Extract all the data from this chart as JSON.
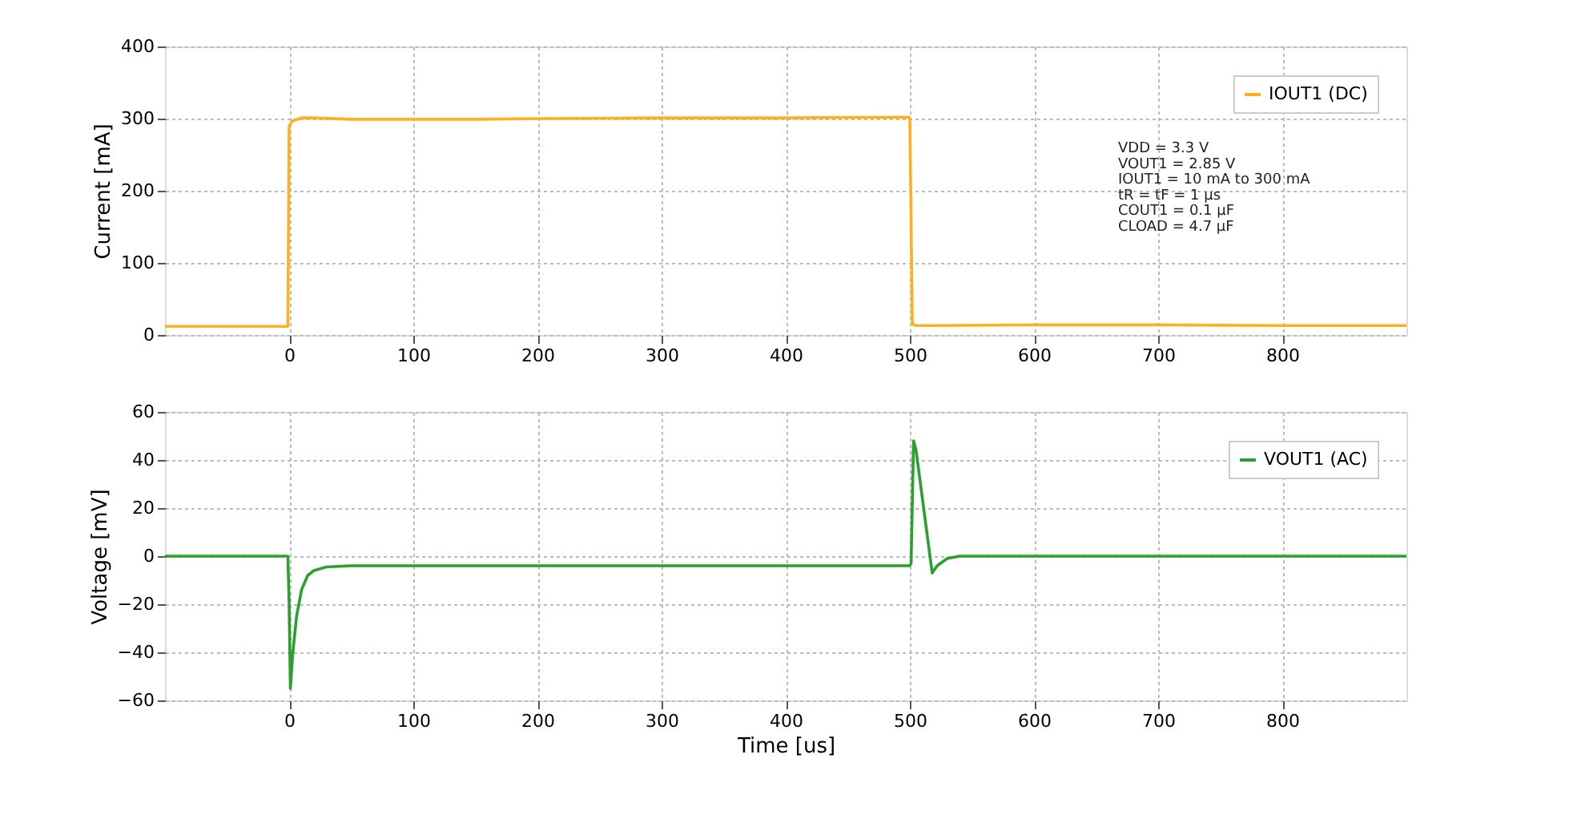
{
  "chart_data": [
    {
      "type": "line",
      "ylabel": "Current [mA]",
      "xlim": [
        -100,
        900
      ],
      "xticks": [
        0,
        100,
        200,
        300,
        400,
        500,
        600,
        700,
        800
      ],
      "ylim": [
        0,
        400
      ],
      "yticks": [
        0,
        100,
        200,
        300,
        400
      ],
      "grid": true,
      "legend": "top right",
      "series": [
        {
          "name": "IOUT1 (DC)",
          "color": "#ffb020",
          "x": [
            -100,
            -1,
            0,
            3,
            10,
            20,
            50,
            100,
            150,
            200,
            300,
            400,
            499,
            500,
            502,
            505,
            520,
            600,
            700,
            800,
            900
          ],
          "values": [
            12,
            12,
            290,
            297,
            301,
            301,
            299,
            299,
            299,
            300,
            301,
            301,
            302,
            300,
            15,
            13,
            13,
            14,
            14,
            13,
            13
          ]
        }
      ],
      "annotations": [
        "VDD = 3.3 V",
        "VOUT1 = 2.85 V",
        "IOUT1 = 10 mA to 300 mA",
        "tR = tF = 1 µs",
        "COUT1 = 0.1 µF",
        "CLOAD = 4.7 µF"
      ]
    },
    {
      "type": "line",
      "xlabel": "Time [us]",
      "ylabel": "Voltage [mV]",
      "xlim": [
        -100,
        900
      ],
      "xticks": [
        0,
        100,
        200,
        300,
        400,
        500,
        600,
        700,
        800
      ],
      "ylim": [
        -60,
        60
      ],
      "yticks": [
        -60,
        -40,
        -20,
        0,
        20,
        40,
        60
      ],
      "grid": true,
      "legend": "top right",
      "series": [
        {
          "name": "VOUT1 (AC)",
          "color": "#2ca02c",
          "x": [
            -100,
            -1,
            0,
            1,
            3,
            6,
            10,
            15,
            20,
            30,
            50,
            100,
            200,
            300,
            400,
            500,
            501,
            503,
            505,
            518,
            522,
            530,
            540,
            600,
            700,
            800,
            900
          ],
          "values": [
            0,
            0,
            -20,
            -55,
            -40,
            -25,
            -14,
            -8,
            -6,
            -4.5,
            -4,
            -4,
            -4,
            -4,
            -4,
            -4,
            -3,
            48,
            44,
            -7,
            -4,
            -1,
            0,
            0,
            0,
            0,
            0
          ]
        }
      ]
    }
  ]
}
